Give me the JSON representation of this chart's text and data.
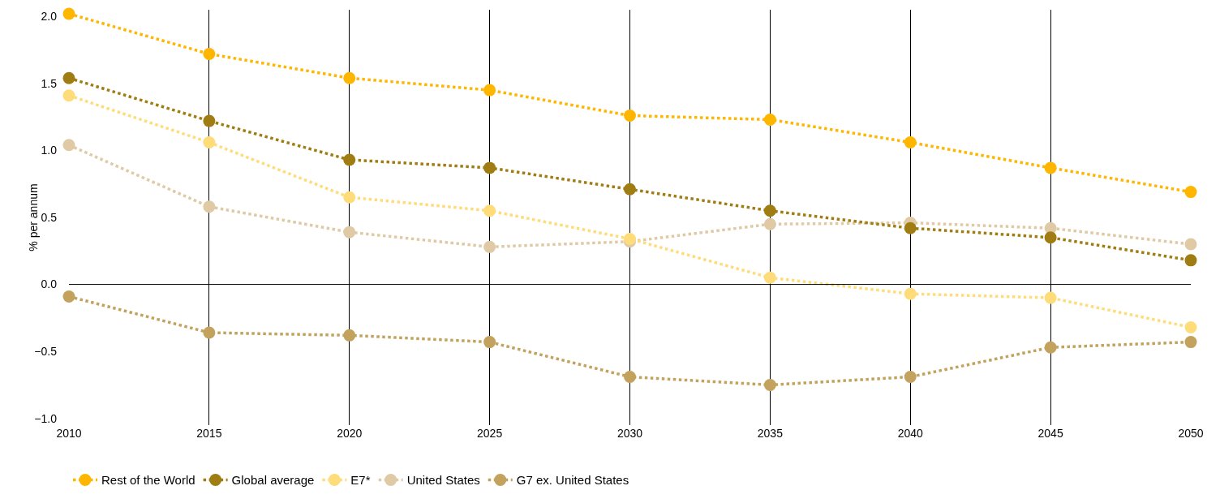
{
  "chart_data": {
    "type": "line",
    "ylabel": "% per annum",
    "x": [
      2010,
      2015,
      2020,
      2025,
      2030,
      2035,
      2040,
      2045,
      2050
    ],
    "series": [
      {
        "name": "Rest of the World",
        "color": "#ffb600",
        "values": [
          2.02,
          1.72,
          1.54,
          1.45,
          1.26,
          1.23,
          1.06,
          0.87,
          0.69
        ]
      },
      {
        "name": "Global average",
        "color": "#a07d12",
        "values": [
          1.54,
          1.22,
          0.93,
          0.87,
          0.71,
          0.55,
          0.42,
          0.35,
          0.18
        ]
      },
      {
        "name": "E7*",
        "color": "#ffdc7a",
        "values": [
          1.41,
          1.06,
          0.65,
          0.55,
          0.34,
          0.05,
          -0.07,
          -0.1,
          -0.32
        ]
      },
      {
        "name": "United States",
        "color": "#dfcaa5",
        "values": [
          1.04,
          0.58,
          0.39,
          0.28,
          0.32,
          0.45,
          0.46,
          0.42,
          0.3
        ]
      },
      {
        "name": "G7 ex. United States",
        "color": "#c2a25c",
        "values": [
          -0.09,
          -0.36,
          -0.38,
          -0.43,
          -0.69,
          -0.75,
          -0.69,
          -0.47,
          -0.43
        ]
      }
    ],
    "xlim": [
      2010,
      2050
    ],
    "xticks": [
      2010,
      2015,
      2020,
      2025,
      2030,
      2035,
      2040,
      2045,
      2050
    ],
    "ylim": [
      -1.05,
      2.05
    ],
    "yticks": [
      {
        "value": -1,
        "label": "−1.0"
      },
      {
        "value": -0.5,
        "label": "−0.5"
      },
      {
        "value": 0,
        "label": "0.0"
      },
      {
        "value": 0.5,
        "label": "0.5"
      },
      {
        "value": 1,
        "label": "1.0"
      },
      {
        "value": 1.5,
        "label": "1.5"
      },
      {
        "value": 2,
        "label": "2.0"
      }
    ],
    "ref_lines": [
      {
        "axis": "y",
        "value": 0,
        "color": "#000000"
      }
    ],
    "grid": "x",
    "legend": "bottom",
    "marker": "circle",
    "line_style": "dotted"
  }
}
